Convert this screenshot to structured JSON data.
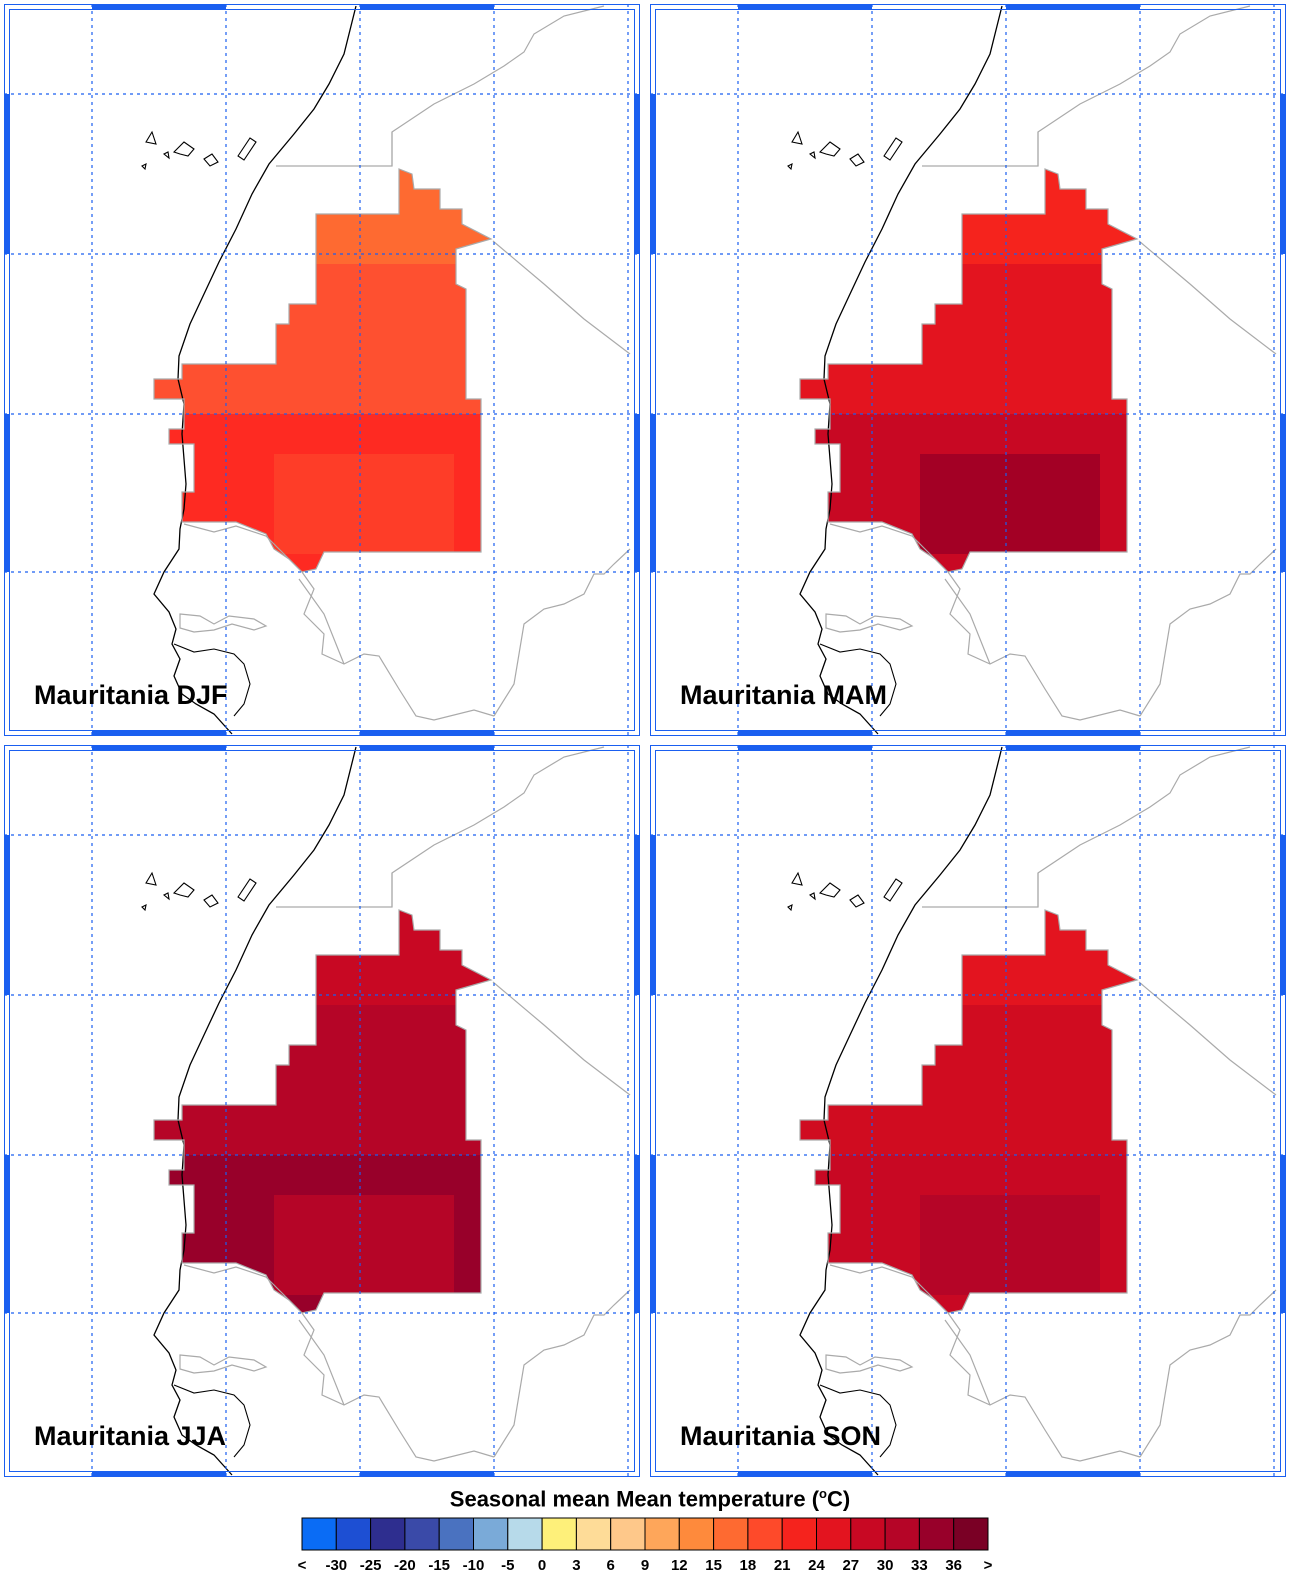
{
  "panels": [
    {
      "title": "Mauritania DJF",
      "fill": {
        "north": "#fe6a31",
        "central": "#fe5030",
        "south": "#fe2a22",
        "patch": "#fe3d28"
      }
    },
    {
      "title": "Mauritania MAM",
      "fill": {
        "north": "#f5231d",
        "central": "#e3141f",
        "south": "#c80823",
        "patch": "#a30025"
      }
    },
    {
      "title": "Mauritania JJA",
      "fill": {
        "north": "#c80823",
        "central": "#b50527",
        "south": "#98002a",
        "patch": "#b50527"
      }
    },
    {
      "title": "Mauritania SON",
      "fill": {
        "north": "#e3141f",
        "central": "#d00c20",
        "south": "#c80823",
        "patch": "#b50527"
      }
    }
  ],
  "colorbar": {
    "title": "Seasonal mean Mean temperature (",
    "unit_sup": "o",
    "unit_tail": "C)",
    "labels": [
      "<",
      "-30",
      "-25",
      "-20",
      "-15",
      "-10",
      "-5",
      "0",
      "3",
      "6",
      "9",
      "12",
      "15",
      "18",
      "21",
      "24",
      "27",
      "30",
      "33",
      "36",
      ">"
    ],
    "colors": [
      "#0a6cf5",
      "#1d4fd3",
      "#2e2e8f",
      "#3a4aa8",
      "#4a72c0",
      "#7aaad8",
      "#b7daea",
      "#fef07a",
      "#fedc98",
      "#fec88a",
      "#fea65a",
      "#fe8a3c",
      "#fe6a31",
      "#fe4a2a",
      "#f5231d",
      "#e3141f",
      "#c80823",
      "#b50527",
      "#98002a",
      "#7a0025"
    ]
  }
}
